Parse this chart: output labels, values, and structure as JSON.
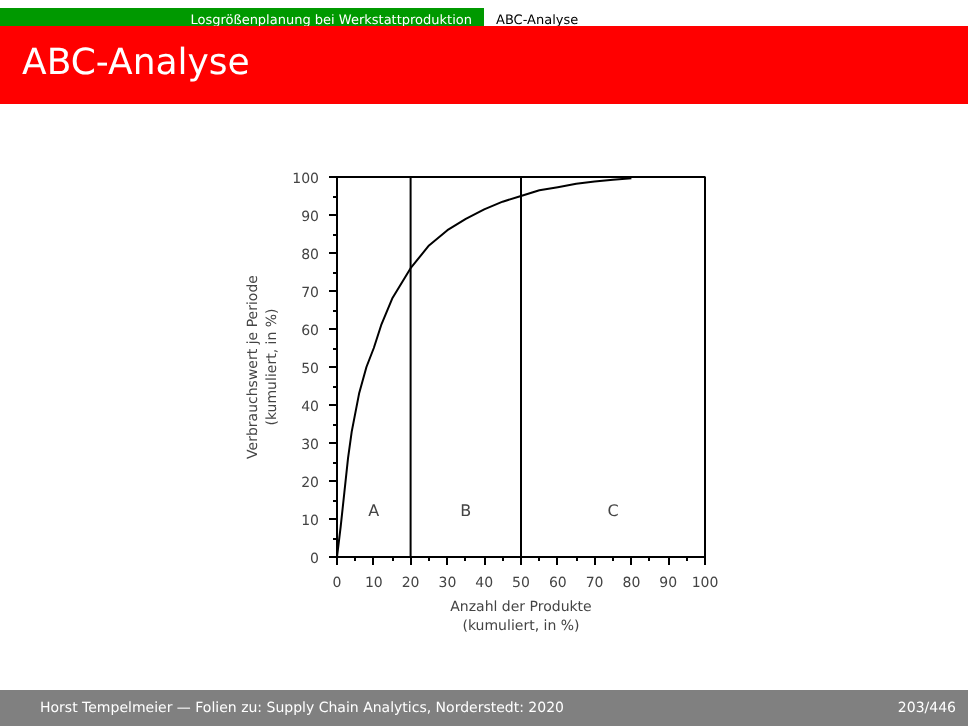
{
  "chart_data": {
    "type": "line",
    "title": "ABC-Analyse",
    "xlabel": "Anzahl der Produkte\n(kumuliert, in %)",
    "ylabel": "Verbrauchswert je Periode\n(kumuliert, in %)",
    "x": [
      0,
      1,
      2,
      3,
      4,
      6,
      8,
      10,
      12,
      15,
      20,
      25,
      30,
      35,
      40,
      45,
      50,
      55,
      60,
      65,
      70,
      75,
      80
    ],
    "series": [
      {
        "color": "#000000",
        "values": [
          0,
          8,
          17,
          26,
          33,
          43,
          50,
          55,
          61,
          68,
          76,
          82,
          86,
          89,
          91.5,
          93.5,
          95,
          96.5,
          97.3,
          98.2,
          98.8,
          99.3,
          99.7
        ]
      }
    ],
    "xlim": [
      0,
      100
    ],
    "ylim": [
      0,
      100
    ],
    "xticks": [
      0,
      10,
      20,
      30,
      40,
      50,
      60,
      70,
      80,
      90,
      100
    ],
    "yticks": [
      0,
      10,
      20,
      30,
      40,
      50,
      60,
      70,
      80,
      90,
      100
    ],
    "grid": false,
    "marker": "none",
    "line_style": "solid",
    "ref_lines": [
      {
        "axis": "x",
        "value": 20,
        "color": "#000000"
      },
      {
        "axis": "x",
        "value": 50,
        "color": "#000000"
      }
    ],
    "annotations": [
      "Losgrößenplanung bei Werkstattproduktion",
      "ABC-Analyse",
      "Horst Tempelmeier — Folien zu: Supply Chain Analytics, Norderstedt: 2020",
      "203/446",
      "A",
      "B",
      "C"
    ]
  }
}
